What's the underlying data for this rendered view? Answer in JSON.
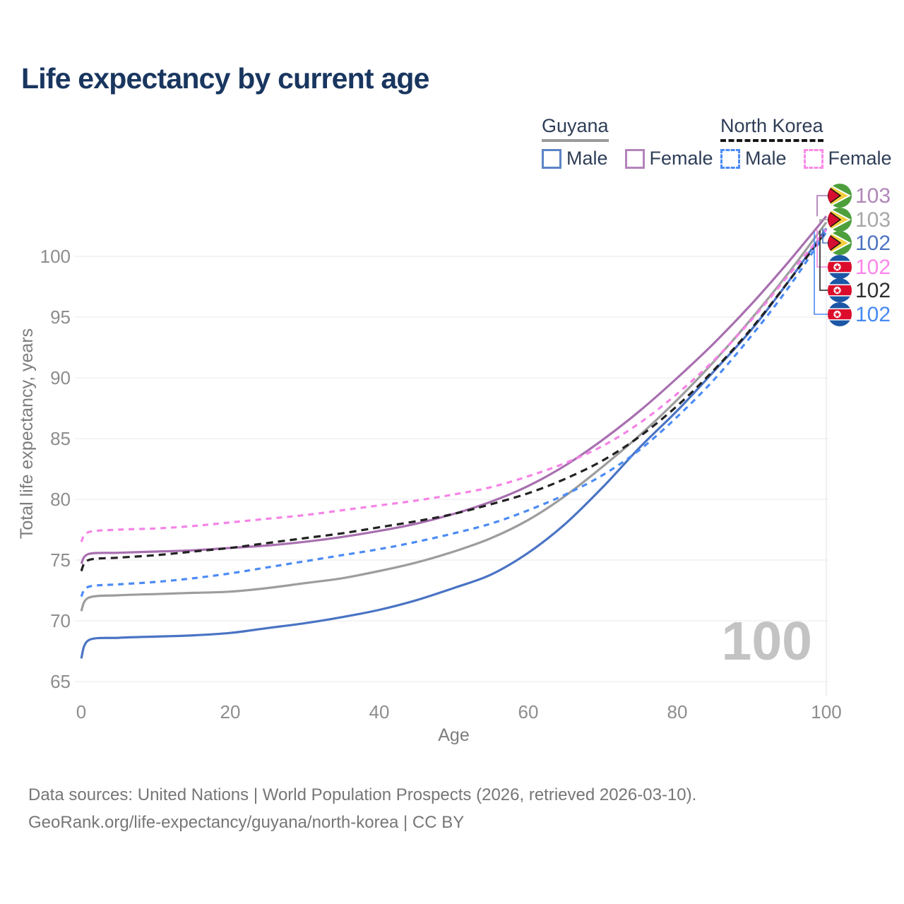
{
  "title": "Life expectancy by current age",
  "legend": {
    "groups": [
      {
        "name": "Guyana",
        "line_style": "solid",
        "underline_color": "#9b9b9b",
        "items": [
          {
            "label": "Male",
            "color": "#5b84c5"
          },
          {
            "label": "Female",
            "color": "#b384ba"
          }
        ]
      },
      {
        "name": "North Korea",
        "line_style": "dashed",
        "underline_color": "#161616",
        "items": [
          {
            "label": "Male",
            "color": "#4b8bf5"
          },
          {
            "label": "Female",
            "color": "#f98ae6"
          }
        ]
      }
    ]
  },
  "hover_age_indicator": "100",
  "footer": {
    "line1": "Data sources: United Nations | World Population Prospects (2026, retrieved 2026-03-10).",
    "line2": "GeoRank.org/life-expectancy/guyana/north-korea | CC BY"
  },
  "chart_data": {
    "type": "line",
    "title": "Life expectancy by current age",
    "xlabel": "Age",
    "ylabel": "Total life expectancy, years",
    "xlim": [
      0,
      100
    ],
    "ylim": [
      63.5,
      104
    ],
    "x_ticks": [
      0,
      20,
      40,
      60,
      80,
      100
    ],
    "y_ticks": [
      65,
      70,
      75,
      80,
      85,
      90,
      95,
      100
    ],
    "grid": "horizontal",
    "legend_position": "top-right",
    "hovered_x": 100,
    "x": [
      0,
      1,
      5,
      10,
      15,
      20,
      25,
      30,
      35,
      40,
      45,
      50,
      55,
      60,
      65,
      70,
      75,
      80,
      85,
      90,
      95,
      100
    ],
    "series": [
      {
        "key": "guyana_male",
        "name": "Guyana Male",
        "country": "Guyana",
        "sex": "Male",
        "color": "#4a74c4",
        "dashed": false,
        "dash": "",
        "values": [
          66.9,
          68.4,
          68.6,
          68.7,
          68.8,
          69.0,
          69.4,
          69.8,
          70.3,
          70.9,
          71.7,
          72.7,
          73.8,
          75.6,
          78.0,
          81.0,
          84.3,
          87.3,
          90.6,
          94.0,
          98.0,
          102.3
        ]
      },
      {
        "key": "guyana_both",
        "name": "Guyana Both sexes",
        "country": "Guyana",
        "sex": "Both",
        "color": "#9d9d9d",
        "dashed": false,
        "dash": "",
        "values": [
          70.8,
          71.9,
          72.1,
          72.2,
          72.3,
          72.4,
          72.7,
          73.1,
          73.5,
          74.1,
          74.8,
          75.7,
          76.8,
          78.3,
          80.3,
          82.7,
          85.3,
          88.2,
          91.4,
          94.9,
          98.7,
          102.8
        ]
      },
      {
        "key": "guyana_female",
        "name": "Guyana Female",
        "country": "Guyana",
        "sex": "Female",
        "color": "#a86fb0",
        "dashed": false,
        "dash": "",
        "values": [
          74.7,
          75.5,
          75.6,
          75.7,
          75.8,
          76.0,
          76.2,
          76.5,
          76.9,
          77.4,
          78.0,
          78.8,
          79.8,
          81.1,
          82.8,
          84.9,
          87.3,
          90.0,
          92.9,
          96.1,
          99.6,
          103.3
        ]
      },
      {
        "key": "nk_male",
        "name": "North Korea Male",
        "country": "North Korea",
        "sex": "Male",
        "color": "#4b8bf5",
        "dashed": true,
        "dash": "8 7",
        "values": [
          72.0,
          72.8,
          73.0,
          73.2,
          73.5,
          73.9,
          74.4,
          74.9,
          75.4,
          75.9,
          76.5,
          77.2,
          78.0,
          79.1,
          80.4,
          82.0,
          84.1,
          86.8,
          89.9,
          93.5,
          97.5,
          102.0
        ]
      },
      {
        "key": "nk_both",
        "name": "North Korea Both sexes",
        "country": "North Korea",
        "sex": "Both",
        "color": "#222222",
        "dashed": true,
        "dash": "10 7",
        "values": [
          74.1,
          75.0,
          75.2,
          75.4,
          75.7,
          76.0,
          76.4,
          76.8,
          77.2,
          77.7,
          78.2,
          78.8,
          79.6,
          80.5,
          81.7,
          83.2,
          85.2,
          87.7,
          90.7,
          94.1,
          98.0,
          102.1
        ]
      },
      {
        "key": "nk_female",
        "name": "North Korea Female",
        "country": "North Korea",
        "sex": "Female",
        "color": "#f583e6",
        "dashed": true,
        "dash": "8 7",
        "values": [
          76.5,
          77.3,
          77.5,
          77.6,
          77.8,
          78.1,
          78.4,
          78.7,
          79.1,
          79.5,
          79.9,
          80.4,
          81.0,
          81.9,
          83.0,
          84.4,
          86.3,
          88.7,
          91.5,
          94.8,
          98.5,
          102.2
        ]
      }
    ],
    "callouts": [
      {
        "series": "guyana_female",
        "flag": "guyana",
        "value": "103",
        "label_color": "#b086b8"
      },
      {
        "series": "guyana_both",
        "flag": "guyana",
        "value": "103",
        "label_color": "#a7a7a7"
      },
      {
        "series": "guyana_male",
        "flag": "guyana",
        "value": "102",
        "label_color": "#4e74c2"
      },
      {
        "series": "nk_female",
        "flag": "north-korea",
        "value": "102",
        "label_color": "#fb86ea"
      },
      {
        "series": "nk_both",
        "flag": "north-korea",
        "value": "102",
        "label_color": "#2e2e2e"
      },
      {
        "series": "nk_male",
        "flag": "north-korea",
        "value": "102",
        "label_color": "#478af3"
      }
    ]
  }
}
